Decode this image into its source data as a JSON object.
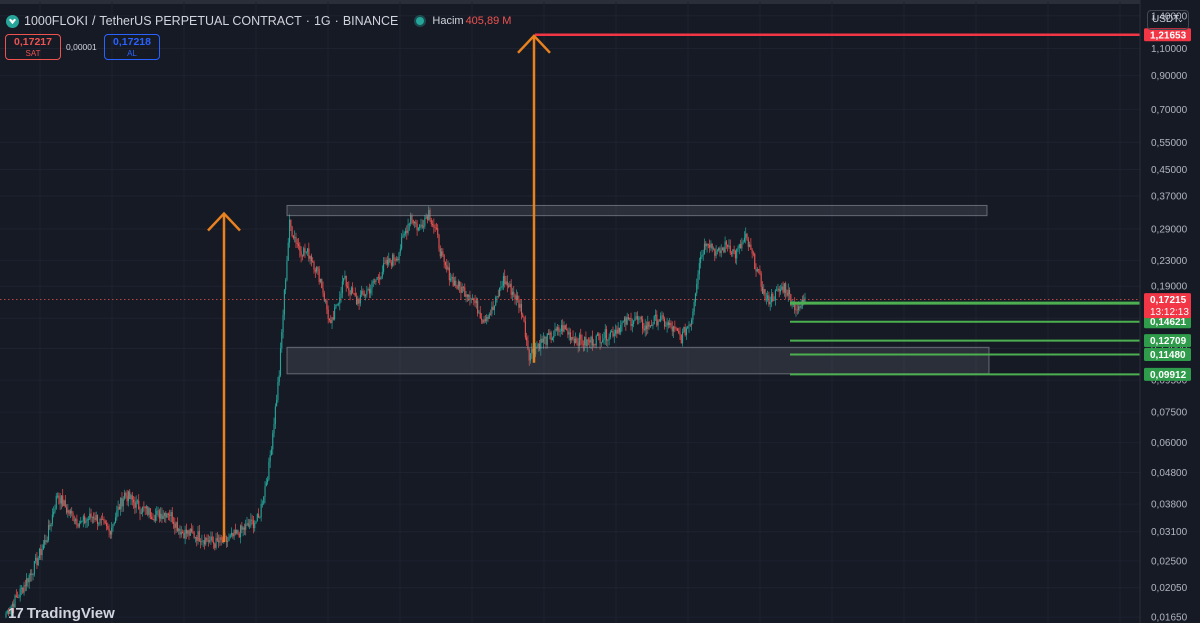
{
  "header": {
    "symbol": "1000FLOKI",
    "pair": "TetherUS PERPETUAL CONTRACT",
    "timeframe": "1G",
    "exchange": "BINANCE",
    "volume_label": "Hacim",
    "volume_value": "405,89 M"
  },
  "trade": {
    "sell_price": "0,17217",
    "sell_label": "SAT",
    "spread": "0,00001",
    "buy_price": "0,17218",
    "buy_label": "AL"
  },
  "currency": "USDT",
  "brand": "TradingView",
  "colors": {
    "background": "#161a25",
    "up": "#26a69a",
    "down": "#ef5350",
    "target": "#f23645",
    "support": "#4caf50",
    "arrow": "#e8811e"
  },
  "chart_data": {
    "type": "candlestick",
    "scale": "log",
    "ylim": [
      0.0158,
      1.55
    ],
    "yticks": [
      {
        "label": "1,40000",
        "value": 1.4
      },
      {
        "label": "1,10000",
        "value": 1.1
      },
      {
        "label": "0,90000",
        "value": 0.9
      },
      {
        "label": "0,70000",
        "value": 0.7
      },
      {
        "label": "0,55000",
        "value": 0.55
      },
      {
        "label": "0,45000",
        "value": 0.45
      },
      {
        "label": "0,37000",
        "value": 0.37
      },
      {
        "label": "0,29000",
        "value": 0.29
      },
      {
        "label": "0,23000",
        "value": 0.23
      },
      {
        "label": "0,19000",
        "value": 0.19
      },
      {
        "label": "0,15000",
        "value": 0.15
      },
      {
        "label": "0,12000",
        "value": 0.12
      },
      {
        "label": "0,09500",
        "value": 0.095
      },
      {
        "label": "0,07500",
        "value": 0.075
      },
      {
        "label": "0,06000",
        "value": 0.06
      },
      {
        "label": "0,04800",
        "value": 0.048
      },
      {
        "label": "0,03800",
        "value": 0.038
      },
      {
        "label": "0,03100",
        "value": 0.031
      },
      {
        "label": "0,02500",
        "value": 0.025
      },
      {
        "label": "0,02050",
        "value": 0.0205
      },
      {
        "label": "0,01650",
        "value": 0.0165
      }
    ],
    "current_price": {
      "value": 0.17215,
      "label": "0,17215",
      "countdown": "13:12:13"
    },
    "target_level": {
      "value": 1.21653,
      "label": "1,21653"
    },
    "support_levels": [
      {
        "value": 0.16703,
        "label": "0,16703"
      },
      {
        "value": 0.14621,
        "label": "0,14621"
      },
      {
        "value": 0.12709,
        "label": "0,12709"
      },
      {
        "value": 0.1148,
        "label": "0,11480"
      },
      {
        "value": 0.09912,
        "label": "0,09912"
      }
    ],
    "zones": [
      {
        "name": "resistance-zone",
        "low": 0.32,
        "high": 0.345
      },
      {
        "name": "support-zone",
        "low": 0.0995,
        "high": 0.121
      }
    ],
    "anchors": [
      {
        "i": 0,
        "p": 0.017
      },
      {
        "i": 10,
        "p": 0.0195
      },
      {
        "i": 22,
        "p": 0.024
      },
      {
        "i": 32,
        "p": 0.03
      },
      {
        "i": 40,
        "p": 0.041
      },
      {
        "i": 48,
        "p": 0.036
      },
      {
        "i": 58,
        "p": 0.033
      },
      {
        "i": 68,
        "p": 0.035
      },
      {
        "i": 80,
        "p": 0.031
      },
      {
        "i": 92,
        "p": 0.041
      },
      {
        "i": 104,
        "p": 0.037
      },
      {
        "i": 116,
        "p": 0.035
      },
      {
        "i": 126,
        "p": 0.036
      },
      {
        "i": 136,
        "p": 0.031
      },
      {
        "i": 150,
        "p": 0.03
      },
      {
        "i": 162,
        "p": 0.0285
      },
      {
        "i": 172,
        "p": 0.029
      },
      {
        "i": 186,
        "p": 0.032
      },
      {
        "i": 196,
        "p": 0.034
      },
      {
        "i": 204,
        "p": 0.05
      },
      {
        "i": 212,
        "p": 0.1
      },
      {
        "i": 216,
        "p": 0.18
      },
      {
        "i": 220,
        "p": 0.3
      },
      {
        "i": 228,
        "p": 0.25
      },
      {
        "i": 236,
        "p": 0.24
      },
      {
        "i": 244,
        "p": 0.2
      },
      {
        "i": 252,
        "p": 0.14
      },
      {
        "i": 262,
        "p": 0.2
      },
      {
        "i": 272,
        "p": 0.17
      },
      {
        "i": 284,
        "p": 0.19
      },
      {
        "i": 294,
        "p": 0.22
      },
      {
        "i": 304,
        "p": 0.24
      },
      {
        "i": 314,
        "p": 0.32
      },
      {
        "i": 320,
        "p": 0.29
      },
      {
        "i": 328,
        "p": 0.33
      },
      {
        "i": 334,
        "p": 0.28
      },
      {
        "i": 340,
        "p": 0.22
      },
      {
        "i": 350,
        "p": 0.19
      },
      {
        "i": 360,
        "p": 0.18
      },
      {
        "i": 370,
        "p": 0.15
      },
      {
        "i": 378,
        "p": 0.16
      },
      {
        "i": 386,
        "p": 0.2
      },
      {
        "i": 394,
        "p": 0.18
      },
      {
        "i": 400,
        "p": 0.16
      },
      {
        "i": 406,
        "p": 0.115
      },
      {
        "i": 414,
        "p": 0.125
      },
      {
        "i": 422,
        "p": 0.13
      },
      {
        "i": 432,
        "p": 0.14
      },
      {
        "i": 440,
        "p": 0.13
      },
      {
        "i": 450,
        "p": 0.125
      },
      {
        "i": 460,
        "p": 0.13
      },
      {
        "i": 470,
        "p": 0.135
      },
      {
        "i": 480,
        "p": 0.145
      },
      {
        "i": 488,
        "p": 0.15
      },
      {
        "i": 496,
        "p": 0.14
      },
      {
        "i": 506,
        "p": 0.15
      },
      {
        "i": 516,
        "p": 0.14
      },
      {
        "i": 524,
        "p": 0.13
      },
      {
        "i": 532,
        "p": 0.15
      },
      {
        "i": 538,
        "p": 0.23
      },
      {
        "i": 544,
        "p": 0.27
      },
      {
        "i": 552,
        "p": 0.24
      },
      {
        "i": 560,
        "p": 0.26
      },
      {
        "i": 566,
        "p": 0.24
      },
      {
        "i": 574,
        "p": 0.27
      },
      {
        "i": 582,
        "p": 0.22
      },
      {
        "i": 590,
        "p": 0.17
      },
      {
        "i": 598,
        "p": 0.18
      },
      {
        "i": 604,
        "p": 0.19
      },
      {
        "i": 610,
        "p": 0.17
      },
      {
        "i": 615,
        "p": 0.158
      },
      {
        "i": 620,
        "p": 0.175
      }
    ]
  }
}
